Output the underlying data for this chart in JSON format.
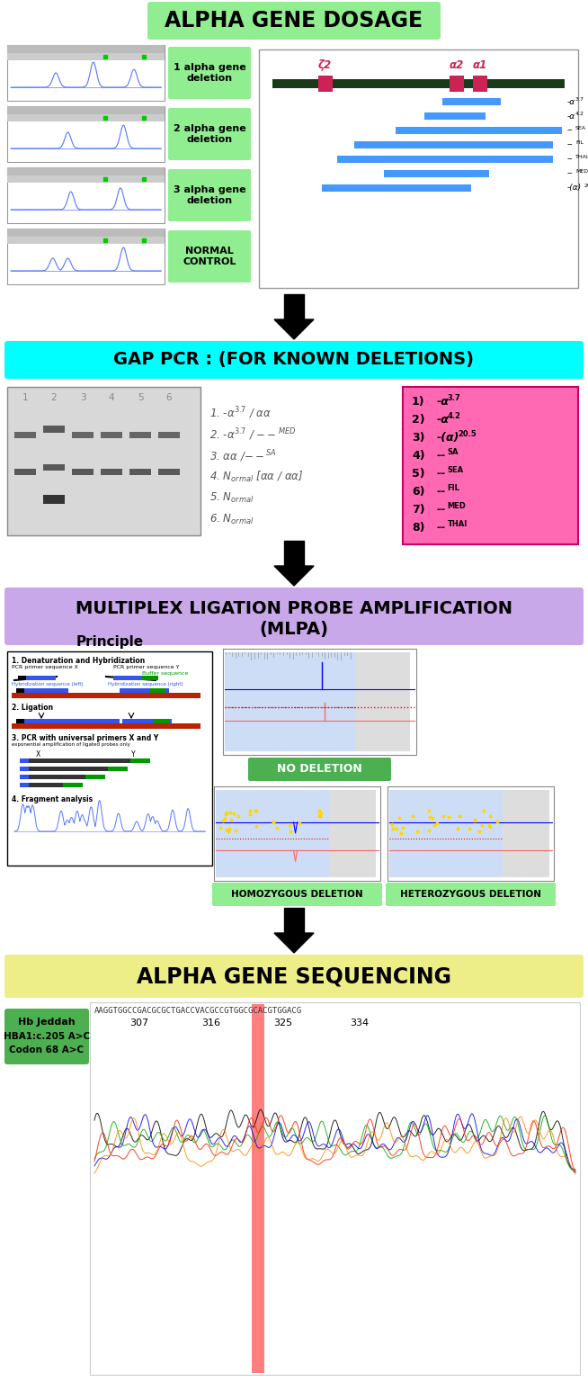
{
  "title1": "ALPHA GENE DOSAGE",
  "title1_bg": "#90EE90",
  "title2": "GAP PCR : (FOR KNOWN DELETIONS)",
  "title2_bg": "#00FFFF",
  "title3_line1": "MULTIPLEX LIGATION PROBE AMPLIFICATION",
  "title3_line2": "(MLPA)",
  "title3_bg": "#C8A8E8",
  "title4": "ALPHA GENE SEQUENCING",
  "title4_bg": "#EEEE88",
  "bg_color": "#FFFFFF",
  "alpha_gene_labels_right": [
    "1 alpha gene\ndeletion",
    "2 alpha gene\ndeletion",
    "3 alpha gene\ndeletion",
    "NORMAL\nCONTROL"
  ],
  "gap_pcr_box_bg": "#FF69B4",
  "no_deletion_label": "NO DELETION",
  "no_deletion_bg": "#4CAF50",
  "homo_label": "HOMOZYGOUS DELETION",
  "homo_bg": "#90EE90",
  "hetero_label": "HETEROZYGOUS DELETION",
  "hetero_bg": "#90EE90",
  "seq_label_line1": "Hb Jeddah",
  "seq_label_line2": "HBA1:c.205 A>C",
  "seq_label_line3": "Codon 68 A>C",
  "seq_label_bg": "#4CAF50",
  "seq_positions": [
    "307",
    "316",
    "325",
    "334"
  ],
  "seq_text": "AAGGTGGCCGACGCGCTGACCVACGCCGTGGCGCACGTGGACG"
}
